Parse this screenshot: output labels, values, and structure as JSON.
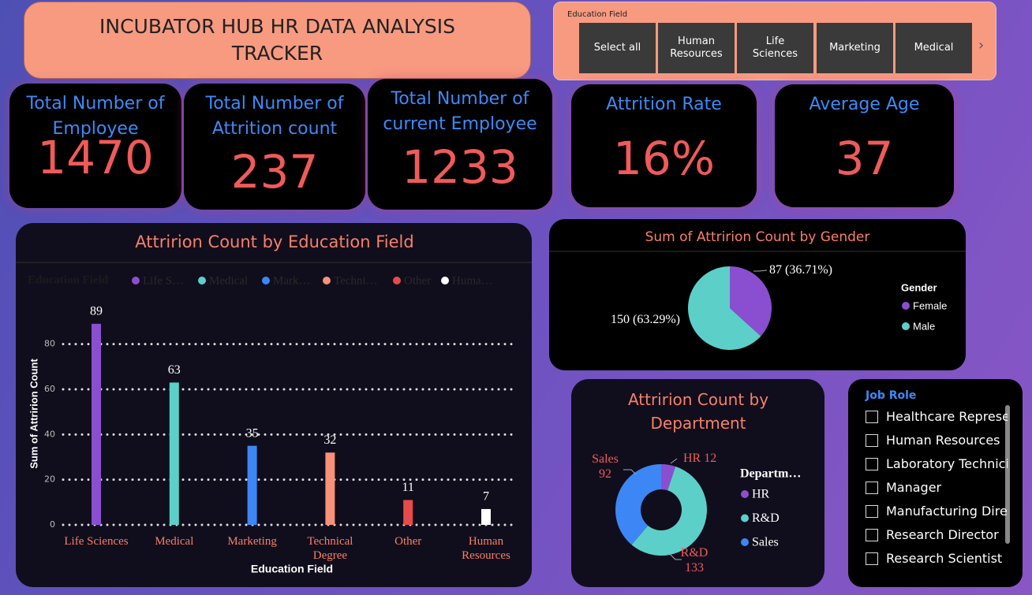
{
  "header": {
    "title": "INCUBATOR HUB HR DATA ANALYSIS TRACKER"
  },
  "filter": {
    "label": "Education Field",
    "options": [
      "Select all",
      "Human Resources",
      "Life Sciences",
      "Marketing",
      "Medical"
    ]
  },
  "kpis": [
    {
      "label": "Total Number of Employee",
      "value": "1470"
    },
    {
      "label": "Total Number of Attrition count",
      "value": "237"
    },
    {
      "label": "Total Number of current Employee",
      "value": "1233"
    },
    {
      "label": "Attrition Rate",
      "value": "16%"
    },
    {
      "label": "Average Age",
      "value": "37"
    }
  ],
  "chart_data": [
    {
      "type": "bar",
      "title": "Attririon Count by Education Field",
      "legend_title": "Education Field",
      "legend_labels": [
        "Life S…",
        "Medical",
        "Mark…",
        "Techni…",
        "Other",
        "Huma…"
      ],
      "categories": [
        "Life Sciences",
        "Medical",
        "Marketing",
        "Technical Degree",
        "Other",
        "Human Resources"
      ],
      "values": [
        89,
        63,
        35,
        32,
        11,
        7
      ],
      "colors": [
        "#8a4fd0",
        "#5ccfc8",
        "#3d86f5",
        "#f7917a",
        "#e84a4a",
        "#ffffff"
      ],
      "ylim": [
        0,
        90
      ],
      "yticks": [
        0,
        20,
        40,
        60,
        80
      ],
      "grid": true,
      "x_label": "Education Field",
      "y_label": "Sum of Attririon Count"
    },
    {
      "type": "pie",
      "title": "Sum of Attririon Count by Gender",
      "legend_title": "Gender",
      "categories": [
        "Female",
        "Male"
      ],
      "values": [
        87,
        150
      ],
      "value_labels": [
        "87 (36.71%)",
        "150 (63.29%)"
      ],
      "colors": [
        "#8a4fd0",
        "#5ccfc8"
      ]
    },
    {
      "type": "donut",
      "title": "Attririon Count by Department",
      "legend_title": "Departm…",
      "categories": [
        "HR",
        "R&D",
        "Sales"
      ],
      "values": [
        12,
        133,
        92
      ],
      "colors": [
        "#8a4fd0",
        "#5ccfc8",
        "#3d86f5"
      ]
    }
  ],
  "job_role": {
    "title": "Job Role",
    "items": [
      "Healthcare Represe…",
      "Human Resources",
      "Laboratory Technician",
      "Manager",
      "Manufacturing Dire…",
      "Research Director",
      "Research Scientist"
    ]
  }
}
